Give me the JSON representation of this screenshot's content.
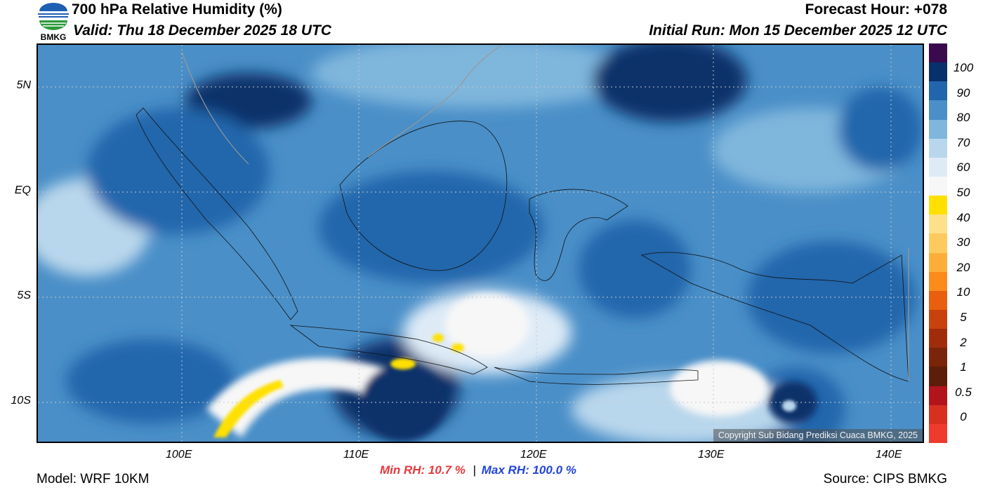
{
  "header": {
    "title": "700 hPa Relative Humidity (%)",
    "valid": "Valid: Thu 18 December 2025 18 UTC",
    "forecast_hour": "Forecast Hour: +078",
    "initial_run": "Initial Run: Mon 15 December 2025 12 UTC",
    "logo_text": "BMKG"
  },
  "map": {
    "lat_labels": [
      "5N",
      "EQ",
      "5S",
      "10S"
    ],
    "lon_labels": [
      "100E",
      "110E",
      "120E",
      "130E",
      "140E"
    ],
    "copyright": "Copyright Sub Bidang Prediksi Cuaca BMKG, 2025"
  },
  "colorbar": {
    "labels": [
      "100",
      "90",
      "80",
      "70",
      "60",
      "50",
      "40",
      "30",
      "20",
      "10",
      "5",
      "2",
      "1",
      "0.5",
      "0"
    ],
    "colors": [
      "#3a0a4e",
      "#08306b",
      "#2166ac",
      "#4a8fc8",
      "#7fb6dc",
      "#b9d7ec",
      "#deebf7",
      "#f7f7f7",
      "#ffe000",
      "#fde08a",
      "#fdca60",
      "#fdae3a",
      "#fb8c1c",
      "#e8600f",
      "#c8420e",
      "#a02d0a",
      "#7a240a",
      "#5c1e0a",
      "#b3131b",
      "#d7301f",
      "#ef3b2c"
    ]
  },
  "stats": {
    "min_label": "Min RH:  10.7 %",
    "separator": "|",
    "max_label": "Max RH: 100.0 %",
    "min_color": "#e8383d",
    "max_color": "#2244dd"
  },
  "footer": {
    "model": "Model: WRF 10KM",
    "source": "Source: CIPS BMKG"
  }
}
